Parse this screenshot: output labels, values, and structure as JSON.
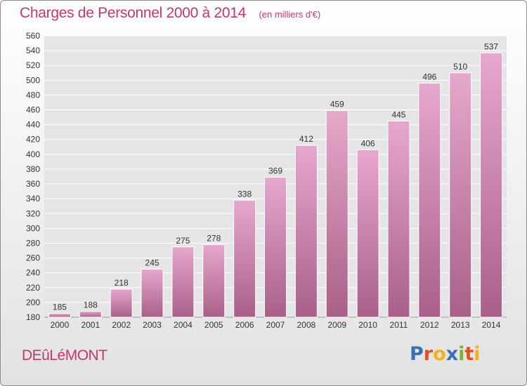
{
  "header": {
    "title": "Charges de Personnel 2000 à 2014",
    "subtitle": "(en milliers d'€)"
  },
  "footer": {
    "commune": "DEûLéMONT",
    "logo_text": "Proxiti",
    "logo_colors": [
      "#3a6fb5",
      "#e2501f",
      "#f0b21a",
      "#3a6fb5",
      "#7ab52e",
      "#e2501f",
      "#f0b21a"
    ]
  },
  "colors": {
    "bar_top": "#e6a8cc",
    "bar_bottom": "#a96088",
    "accent": "#c0386d"
  },
  "chart_data": {
    "type": "bar",
    "categories": [
      "2000",
      "2001",
      "2002",
      "2003",
      "2004",
      "2005",
      "2006",
      "2007",
      "2008",
      "2009",
      "2010",
      "2011",
      "2012",
      "2013",
      "2014"
    ],
    "values": [
      185,
      188,
      218,
      245,
      275,
      278,
      338,
      369,
      412,
      459,
      406,
      445,
      496,
      510,
      537
    ],
    "ylim": [
      180,
      560
    ],
    "yticks": [
      180,
      200,
      220,
      240,
      260,
      280,
      300,
      320,
      340,
      360,
      380,
      400,
      420,
      440,
      460,
      480,
      500,
      520,
      540,
      560
    ],
    "grid": true
  }
}
